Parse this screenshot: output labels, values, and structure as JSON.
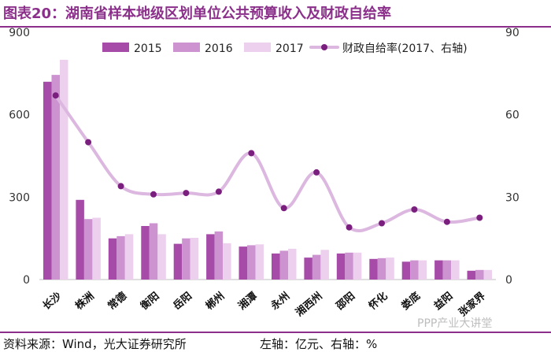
{
  "header": {
    "title": "图表20：湖南省样本地级区划单位公共预算收入及财政自给率"
  },
  "footer": {
    "source": "资料来源：Wind，光大证券研究所",
    "axis_note": "左轴：亿元、右轴：%"
  },
  "watermark": {
    "text": "PPP产业大讲堂"
  },
  "colors": {
    "s2015": "#a64ca8",
    "s2016": "#cd93d1",
    "s2017": "#ecd0ee",
    "line": "#dcb8e0",
    "marker": "#7a1f7e",
    "title": "#8b2f8b"
  },
  "chart_data": {
    "type": "bar+line",
    "title": "湖南省样本地级区划单位公共预算收入及财政自给率",
    "categories": [
      "长沙",
      "株洲",
      "常德",
      "衡阳",
      "岳阳",
      "郴州",
      "湘潭",
      "永州",
      "湘西州",
      "邵阳",
      "怀化",
      "娄底",
      "益阳",
      "张家界"
    ],
    "series": [
      {
        "name": "2015",
        "type": "bar",
        "axis": "left",
        "values": [
          720,
          290,
          150,
          195,
          130,
          165,
          120,
          95,
          80,
          95,
          75,
          65,
          70,
          32
        ]
      },
      {
        "name": "2016",
        "type": "bar",
        "axis": "left",
        "values": [
          745,
          220,
          158,
          205,
          150,
          175,
          125,
          105,
          90,
          98,
          78,
          70,
          70,
          35
        ]
      },
      {
        "name": "2017",
        "type": "bar",
        "axis": "left",
        "values": [
          800,
          225,
          165,
          165,
          152,
          132,
          128,
          112,
          108,
          98,
          80,
          70,
          70,
          35
        ]
      },
      {
        "name": "财政自给率(2017、右轴)",
        "type": "line",
        "axis": "right",
        "values": [
          67,
          50,
          34,
          31,
          31.5,
          32,
          46,
          26,
          39,
          19,
          20.5,
          25.5,
          21,
          22.5
        ]
      }
    ],
    "left_axis": {
      "min": 0,
      "max": 900,
      "ticks": [
        "0",
        "300",
        "600",
        "900"
      ],
      "tick_values": [
        0,
        300,
        600,
        900
      ],
      "unit": "亿元"
    },
    "right_axis": {
      "min": 0,
      "max": 90,
      "ticks": [
        "0",
        "30",
        "60",
        "90"
      ],
      "tick_values": [
        0,
        30,
        60,
        90
      ],
      "unit": "%"
    },
    "legend": {
      "position": "top",
      "labels": [
        "2015",
        "2016",
        "2017",
        "财政自给率(2017、右轴)"
      ]
    }
  }
}
